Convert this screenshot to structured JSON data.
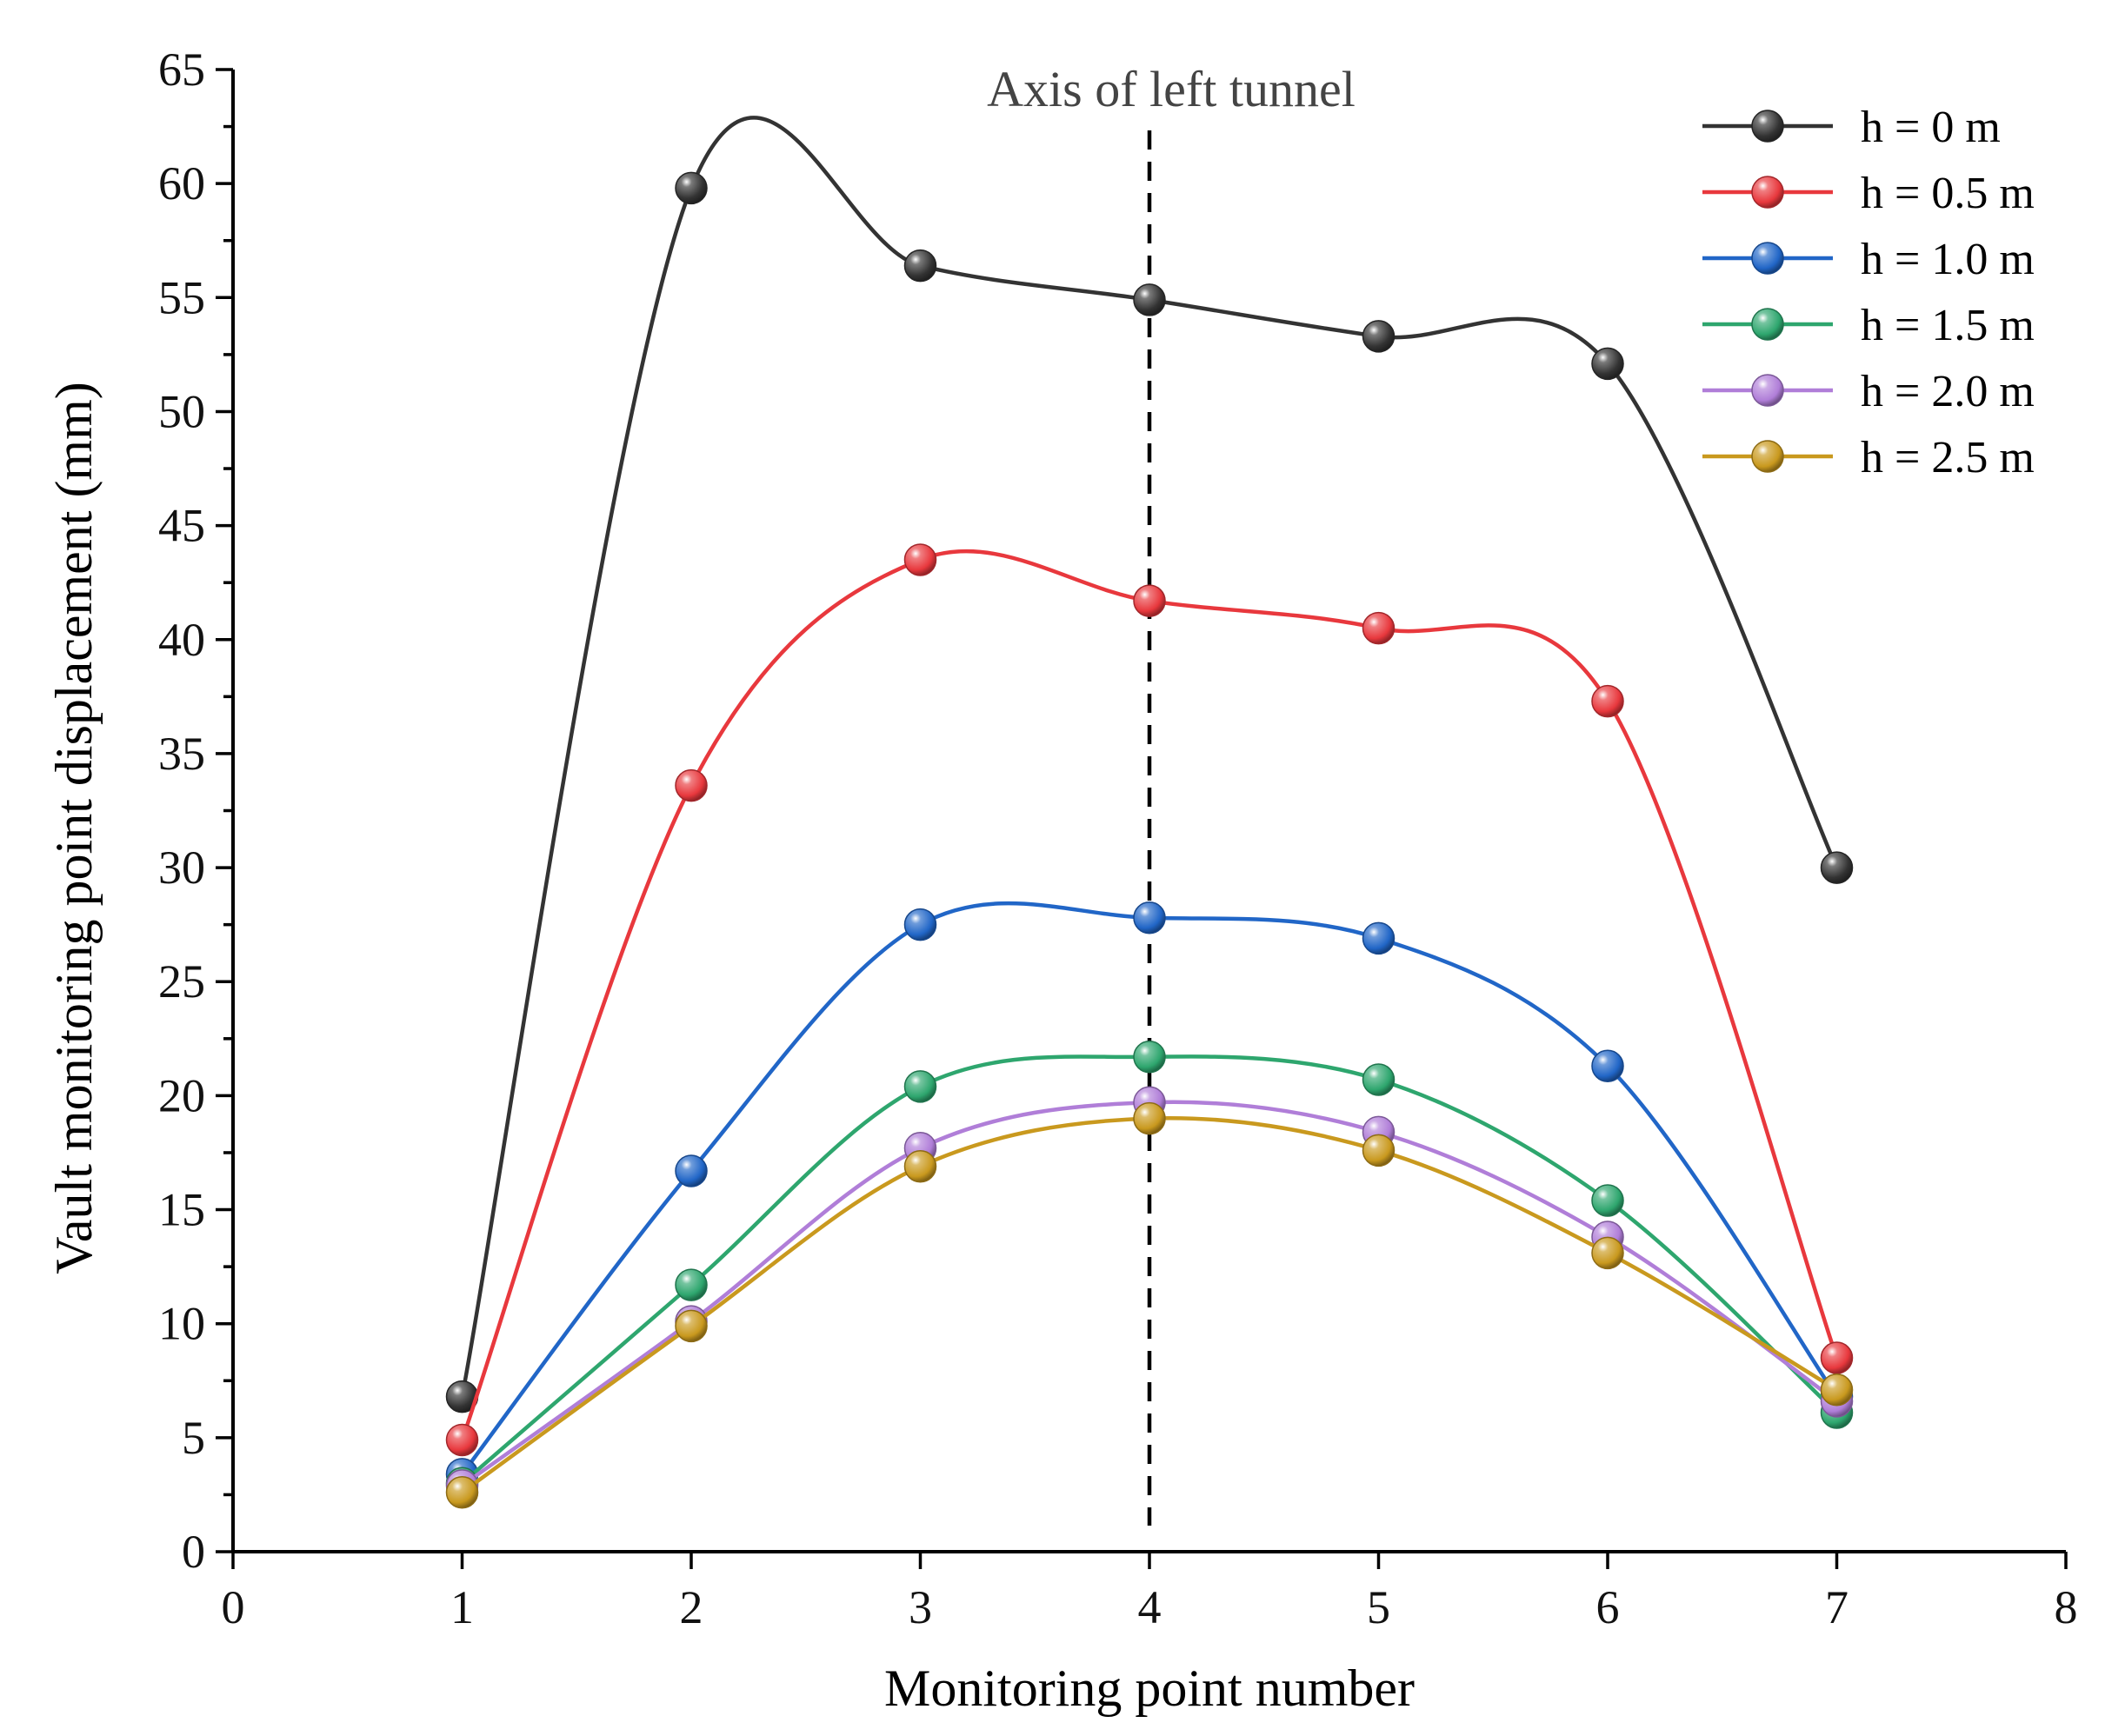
{
  "chart_data": {
    "type": "line",
    "xlabel": "Monitoring point number",
    "ylabel": "Vault monitoring point displacement (mm)",
    "xlim": [
      0,
      8
    ],
    "ylim": [
      0,
      65
    ],
    "x_ticks": [
      0,
      1,
      2,
      3,
      4,
      5,
      6,
      7,
      8
    ],
    "y_ticks": [
      0,
      5,
      10,
      15,
      20,
      25,
      30,
      35,
      40,
      45,
      50,
      55,
      60,
      65
    ],
    "x_tick_labels": [
      "0",
      "1",
      "2",
      "3",
      "4",
      "5",
      "6",
      "7",
      "8"
    ],
    "y_tick_labels": [
      "0",
      "5",
      "10",
      "15",
      "20",
      "25",
      "30",
      "35",
      "40",
      "45",
      "50",
      "55",
      "60",
      "65"
    ],
    "legend_position": "top-right",
    "annotation": {
      "text": "Axis of left tunnel",
      "x": 4,
      "style": "dashed-vertical-line"
    },
    "x": [
      1,
      2,
      3,
      4,
      5,
      6,
      7
    ],
    "series": [
      {
        "name": "h = 0 m",
        "color": "#333333",
        "values": [
          6.8,
          59.8,
          56.4,
          54.9,
          53.3,
          52.1,
          30.0
        ]
      },
      {
        "name": "h = 0.5 m",
        "color": "#e8383d",
        "values": [
          4.9,
          33.6,
          43.5,
          41.7,
          40.5,
          37.3,
          8.5
        ]
      },
      {
        "name": "h = 1.0 m",
        "color": "#2166c7",
        "values": [
          3.4,
          16.7,
          27.5,
          27.8,
          26.9,
          21.3,
          6.8
        ]
      },
      {
        "name": "h = 1.5 m",
        "color": "#2ea66e",
        "values": [
          3.0,
          11.7,
          20.4,
          21.7,
          20.7,
          15.4,
          6.1
        ]
      },
      {
        "name": "h = 2.0 m",
        "color": "#b07ed8",
        "values": [
          2.9,
          10.1,
          17.7,
          19.7,
          18.4,
          13.8,
          6.6
        ]
      },
      {
        "name": "h = 2.5 m",
        "color": "#c9991e",
        "values": [
          2.6,
          9.9,
          16.9,
          19.0,
          17.6,
          13.1,
          7.1
        ]
      }
    ]
  }
}
